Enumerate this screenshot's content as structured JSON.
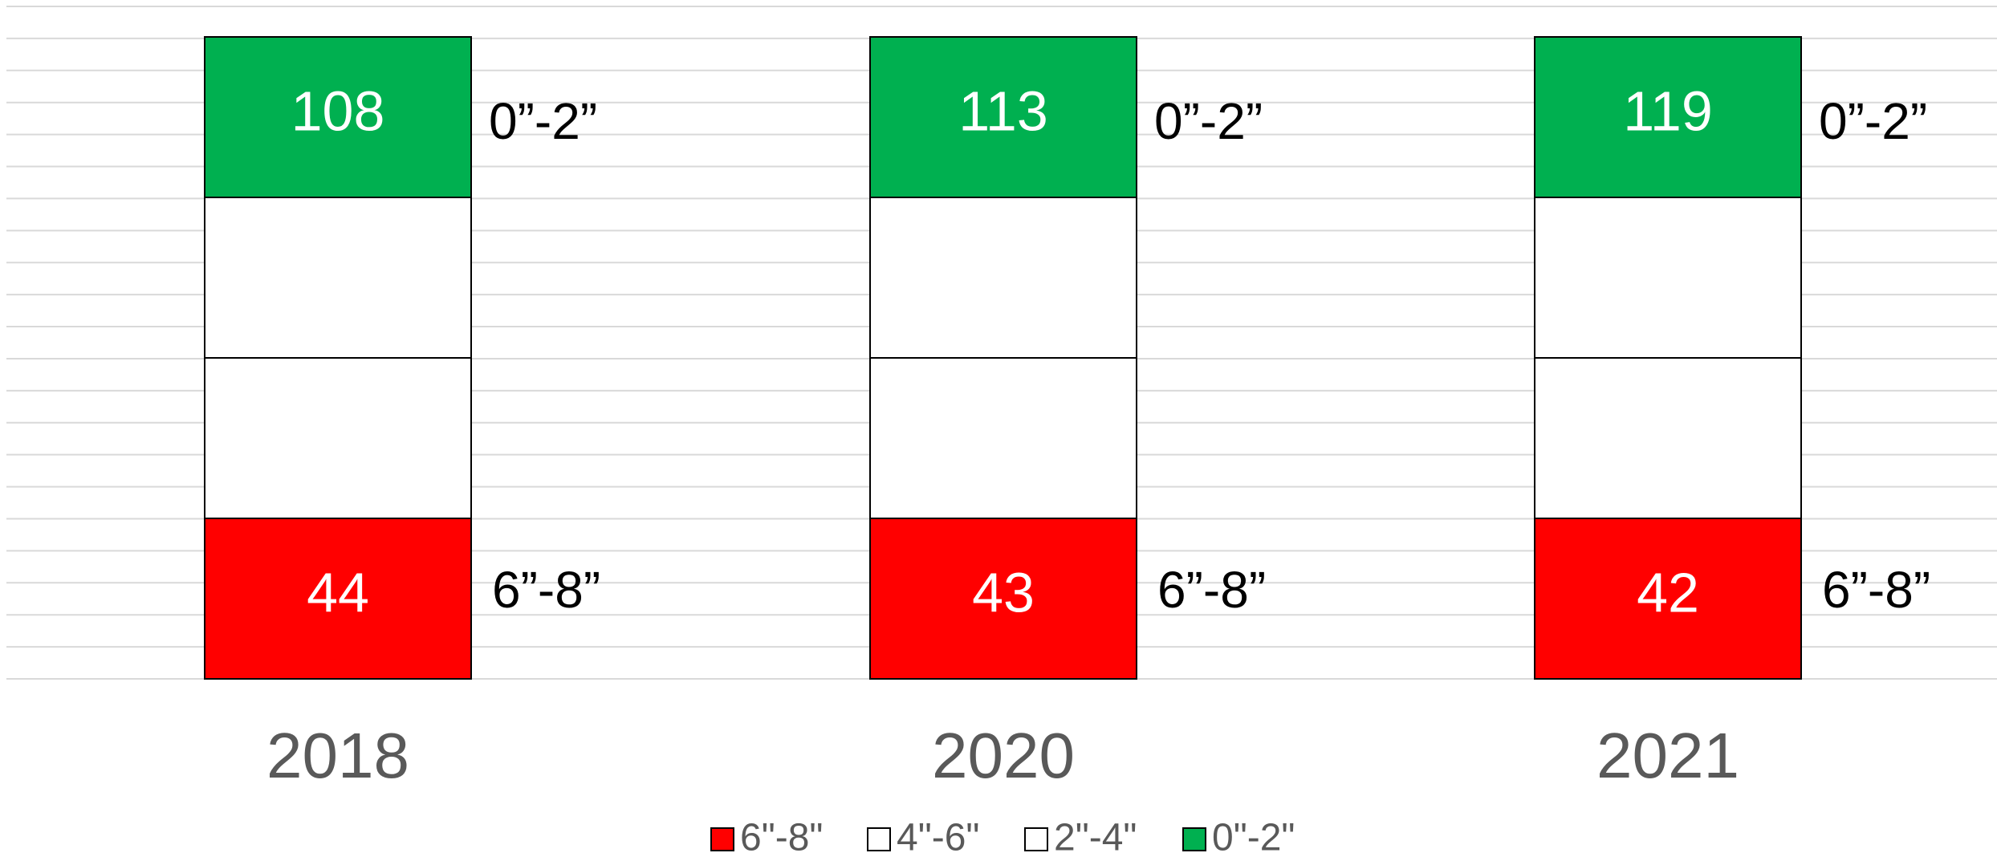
{
  "chart_data": {
    "type": "bar",
    "stacked": true,
    "grid": true,
    "categories": [
      "2018",
      "2020",
      "2021"
    ],
    "series": [
      {
        "name": "6\"-8\"",
        "color": "#ff0000",
        "values": [
          44,
          43,
          42
        ]
      },
      {
        "name": "4\"-6\"",
        "color": "#ffffff",
        "values": [
          null,
          null,
          null
        ]
      },
      {
        "name": "2\"-4\"",
        "color": "#ffffff",
        "values": [
          null,
          null,
          null
        ]
      },
      {
        "name": "0\"-2\"",
        "color": "#00b050",
        "values": [
          108,
          113,
          119
        ]
      }
    ],
    "annotations": [
      {
        "top": "0”-2”",
        "bottom": "6”-8”"
      },
      {
        "top": "0”-2”",
        "bottom": "6”-8”"
      },
      {
        "top": "0”-2”",
        "bottom": "6”-8”"
      }
    ],
    "legend": "bottom"
  }
}
